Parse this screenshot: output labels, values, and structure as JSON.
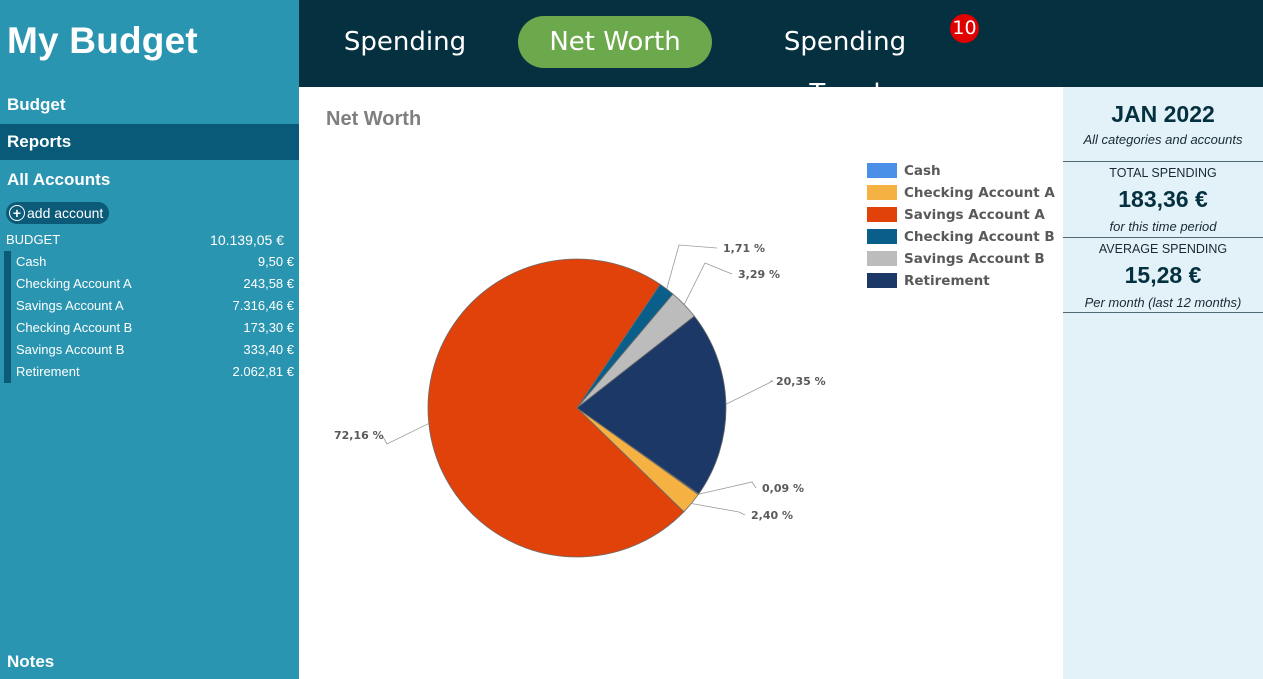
{
  "app": {
    "title": "My Budget"
  },
  "sidebar": {
    "nav": {
      "budget": "Budget",
      "reports": "Reports",
      "all_accounts": "All Accounts",
      "notes": "Notes"
    },
    "add_account": "add account",
    "budget_total": {
      "label": "BUDGET",
      "value": "10.139,05 €"
    },
    "accounts": [
      {
        "name": "Cash",
        "value": "9,50 €"
      },
      {
        "name": "Checking Account A",
        "value": "243,58 €"
      },
      {
        "name": "Savings Account A",
        "value": "7.316,46 €"
      },
      {
        "name": "Checking Account B",
        "value": "173,30 €"
      },
      {
        "name": "Savings Account B",
        "value": "333,40 €"
      },
      {
        "name": "Retirement",
        "value": "2.062,81 €"
      }
    ]
  },
  "tabs": {
    "spending": "Spending",
    "net_worth": "Net Worth",
    "spending_trend": "Spending Trend",
    "badge": "10",
    "active": "Net Worth"
  },
  "main": {
    "title": "Net Worth"
  },
  "chart_data": {
    "type": "pie",
    "title": "",
    "legend_position": "right",
    "slices": [
      {
        "name": "Cash",
        "value": 0.09,
        "label": "0,09 %",
        "color": "#4a8fe8"
      },
      {
        "name": "Checking Account A",
        "value": 2.4,
        "label": "2,40 %",
        "color": "#f5b142"
      },
      {
        "name": "Savings Account A",
        "value": 72.16,
        "label": "72,16 %",
        "color": "#e0420a"
      },
      {
        "name": "Checking Account B",
        "value": 1.71,
        "label": "1,71 %",
        "color": "#0a5f8a"
      },
      {
        "name": "Savings Account B",
        "value": 3.29,
        "label": "3,29 %",
        "color": "#bcbcbc"
      },
      {
        "name": "Retirement",
        "value": 20.35,
        "label": "20,35 %",
        "color": "#1b3866"
      }
    ]
  },
  "summary": {
    "period": "JAN 2022",
    "scope": "All categories and accounts",
    "total_label": "TOTAL SPENDING",
    "total_value": "183,36 €",
    "total_sub": "for this time period",
    "avg_label": "AVERAGE SPENDING",
    "avg_value": "15,28 €",
    "avg_sub": "Per month (last 12 months)"
  }
}
